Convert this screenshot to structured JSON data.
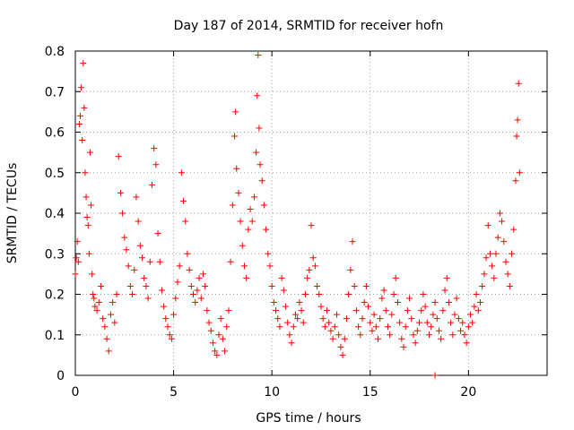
{
  "chart_data": {
    "type": "scatter",
    "title": "Day 187 of 2014, SRMTID for receiver hofn",
    "xlabel": "GPS time / hours",
    "ylabel": "SRMTID / TECUs",
    "xlim": [
      0,
      24
    ],
    "ylim": [
      0,
      0.8
    ],
    "xticks": [
      0,
      5,
      10,
      15,
      20
    ],
    "yticks": [
      0,
      0.1,
      0.2,
      0.3,
      0.4,
      0.5,
      0.6,
      0.7,
      0.8
    ],
    "xtick_labels": [
      "0",
      "5",
      "10",
      "15",
      "20"
    ],
    "ytick_labels": [
      "0",
      "0.1",
      "0.2",
      "0.3",
      "0.4",
      "0.5",
      "0.6",
      "0.7",
      "0.8"
    ],
    "grid": true,
    "marker": "plus",
    "color": "#ff0000",
    "series": [
      {
        "name": "SRMTID",
        "points": [
          [
            0.0,
            0.25
          ],
          [
            0.05,
            0.29
          ],
          [
            0.1,
            0.33
          ],
          [
            0.15,
            0.28
          ],
          [
            0.2,
            0.62
          ],
          [
            0.25,
            0.64
          ],
          [
            0.3,
            0.71
          ],
          [
            0.35,
            0.58
          ],
          [
            0.4,
            0.77
          ],
          [
            0.45,
            0.66
          ],
          [
            0.5,
            0.5
          ],
          [
            0.55,
            0.44
          ],
          [
            0.6,
            0.39
          ],
          [
            0.65,
            0.37
          ],
          [
            0.7,
            0.3
          ],
          [
            0.75,
            0.55
          ],
          [
            0.8,
            0.42
          ],
          [
            0.85,
            0.25
          ],
          [
            0.9,
            0.2
          ],
          [
            0.95,
            0.19
          ],
          [
            1.0,
            0.17
          ],
          [
            1.1,
            0.16
          ],
          [
            1.2,
            0.18
          ],
          [
            1.3,
            0.22
          ],
          [
            1.4,
            0.14
          ],
          [
            1.5,
            0.12
          ],
          [
            1.6,
            0.09
          ],
          [
            1.7,
            0.06
          ],
          [
            1.8,
            0.15
          ],
          [
            1.9,
            0.18
          ],
          [
            2.0,
            0.13
          ],
          [
            2.1,
            0.2
          ],
          [
            2.2,
            0.54
          ],
          [
            2.3,
            0.45
          ],
          [
            2.4,
            0.4
          ],
          [
            2.5,
            0.34
          ],
          [
            2.6,
            0.31
          ],
          [
            2.7,
            0.27
          ],
          [
            2.8,
            0.22
          ],
          [
            2.9,
            0.2
          ],
          [
            3.0,
            0.26
          ],
          [
            3.1,
            0.44
          ],
          [
            3.2,
            0.38
          ],
          [
            3.3,
            0.32
          ],
          [
            3.4,
            0.29
          ],
          [
            3.5,
            0.24
          ],
          [
            3.6,
            0.22
          ],
          [
            3.7,
            0.19
          ],
          [
            3.8,
            0.28
          ],
          [
            3.9,
            0.47
          ],
          [
            4.0,
            0.56
          ],
          [
            4.1,
            0.52
          ],
          [
            4.2,
            0.35
          ],
          [
            4.3,
            0.28
          ],
          [
            4.4,
            0.21
          ],
          [
            4.5,
            0.17
          ],
          [
            4.6,
            0.14
          ],
          [
            4.7,
            0.12
          ],
          [
            4.8,
            0.1
          ],
          [
            4.9,
            0.09
          ],
          [
            5.0,
            0.15
          ],
          [
            5.1,
            0.19
          ],
          [
            5.2,
            0.23
          ],
          [
            5.3,
            0.27
          ],
          [
            5.4,
            0.5
          ],
          [
            5.5,
            0.43
          ],
          [
            5.6,
            0.38
          ],
          [
            5.7,
            0.3
          ],
          [
            5.8,
            0.26
          ],
          [
            5.9,
            0.22
          ],
          [
            6.0,
            0.2
          ],
          [
            6.1,
            0.18
          ],
          [
            6.2,
            0.21
          ],
          [
            6.3,
            0.24
          ],
          [
            6.4,
            0.19
          ],
          [
            6.5,
            0.25
          ],
          [
            6.6,
            0.22
          ],
          [
            6.7,
            0.16
          ],
          [
            6.8,
            0.13
          ],
          [
            6.9,
            0.11
          ],
          [
            7.0,
            0.08
          ],
          [
            7.1,
            0.06
          ],
          [
            7.2,
            0.05
          ],
          [
            7.3,
            0.1
          ],
          [
            7.4,
            0.14
          ],
          [
            7.5,
            0.09
          ],
          [
            7.6,
            0.06
          ],
          [
            7.7,
            0.12
          ],
          [
            7.8,
            0.16
          ],
          [
            7.9,
            0.28
          ],
          [
            8.0,
            0.42
          ],
          [
            8.1,
            0.59
          ],
          [
            8.15,
            0.65
          ],
          [
            8.2,
            0.51
          ],
          [
            8.3,
            0.45
          ],
          [
            8.4,
            0.38
          ],
          [
            8.5,
            0.32
          ],
          [
            8.6,
            0.27
          ],
          [
            8.7,
            0.24
          ],
          [
            8.8,
            0.36
          ],
          [
            8.9,
            0.41
          ],
          [
            9.0,
            0.38
          ],
          [
            9.1,
            0.44
          ],
          [
            9.2,
            0.55
          ],
          [
            9.25,
            0.69
          ],
          [
            9.3,
            0.79
          ],
          [
            9.35,
            0.61
          ],
          [
            9.4,
            0.52
          ],
          [
            9.5,
            0.48
          ],
          [
            9.6,
            0.42
          ],
          [
            9.7,
            0.36
          ],
          [
            9.8,
            0.3
          ],
          [
            9.9,
            0.27
          ],
          [
            10.0,
            0.22
          ],
          [
            10.1,
            0.18
          ],
          [
            10.2,
            0.16
          ],
          [
            10.3,
            0.14
          ],
          [
            10.4,
            0.12
          ],
          [
            10.5,
            0.24
          ],
          [
            10.6,
            0.21
          ],
          [
            10.7,
            0.17
          ],
          [
            10.8,
            0.13
          ],
          [
            10.9,
            0.1
          ],
          [
            11.0,
            0.08
          ],
          [
            11.1,
            0.12
          ],
          [
            11.2,
            0.15
          ],
          [
            11.3,
            0.14
          ],
          [
            11.4,
            0.18
          ],
          [
            11.5,
            0.16
          ],
          [
            11.6,
            0.13
          ],
          [
            11.7,
            0.2
          ],
          [
            11.8,
            0.24
          ],
          [
            11.9,
            0.26
          ],
          [
            12.0,
            0.37
          ],
          [
            12.1,
            0.29
          ],
          [
            12.2,
            0.27
          ],
          [
            12.3,
            0.22
          ],
          [
            12.4,
            0.2
          ],
          [
            12.5,
            0.17
          ],
          [
            12.6,
            0.14
          ],
          [
            12.7,
            0.12
          ],
          [
            12.8,
            0.16
          ],
          [
            12.9,
            0.13
          ],
          [
            13.0,
            0.11
          ],
          [
            13.1,
            0.09
          ],
          [
            13.2,
            0.12
          ],
          [
            13.3,
            0.15
          ],
          [
            13.4,
            0.1
          ],
          [
            13.5,
            0.07
          ],
          [
            13.6,
            0.05
          ],
          [
            13.7,
            0.09
          ],
          [
            13.8,
            0.14
          ],
          [
            13.9,
            0.2
          ],
          [
            14.0,
            0.26
          ],
          [
            14.1,
            0.33
          ],
          [
            14.2,
            0.22
          ],
          [
            14.3,
            0.16
          ],
          [
            14.4,
            0.12
          ],
          [
            14.5,
            0.1
          ],
          [
            14.6,
            0.14
          ],
          [
            14.7,
            0.18
          ],
          [
            14.8,
            0.22
          ],
          [
            14.9,
            0.17
          ],
          [
            15.0,
            0.13
          ],
          [
            15.1,
            0.11
          ],
          [
            15.2,
            0.15
          ],
          [
            15.3,
            0.12
          ],
          [
            15.4,
            0.09
          ],
          [
            15.5,
            0.14
          ],
          [
            15.6,
            0.19
          ],
          [
            15.7,
            0.21
          ],
          [
            15.8,
            0.16
          ],
          [
            15.9,
            0.12
          ],
          [
            16.0,
            0.1
          ],
          [
            16.1,
            0.15
          ],
          [
            16.2,
            0.2
          ],
          [
            16.3,
            0.24
          ],
          [
            16.4,
            0.18
          ],
          [
            16.5,
            0.13
          ],
          [
            16.6,
            0.09
          ],
          [
            16.7,
            0.07
          ],
          [
            16.8,
            0.12
          ],
          [
            16.9,
            0.16
          ],
          [
            17.0,
            0.19
          ],
          [
            17.1,
            0.14
          ],
          [
            17.2,
            0.1
          ],
          [
            17.3,
            0.08
          ],
          [
            17.4,
            0.11
          ],
          [
            17.5,
            0.13
          ],
          [
            17.6,
            0.16
          ],
          [
            17.7,
            0.2
          ],
          [
            17.8,
            0.17
          ],
          [
            17.9,
            0.13
          ],
          [
            18.0,
            0.1
          ],
          [
            18.1,
            0.12
          ],
          [
            18.2,
            0.15
          ],
          [
            18.3,
            0.18
          ],
          [
            18.4,
            0.14
          ],
          [
            18.5,
            0.11
          ],
          [
            18.6,
            0.09
          ],
          [
            18.7,
            0.16
          ],
          [
            18.8,
            0.21
          ],
          [
            18.9,
            0.24
          ],
          [
            19.0,
            0.18
          ],
          [
            19.1,
            0.13
          ],
          [
            19.2,
            0.1
          ],
          [
            19.3,
            0.15
          ],
          [
            19.4,
            0.19
          ],
          [
            19.5,
            0.14
          ],
          [
            19.6,
            0.11
          ],
          [
            19.7,
            0.13
          ],
          [
            19.8,
            0.1
          ],
          [
            19.9,
            0.08
          ],
          [
            20.0,
            0.12
          ],
          [
            20.1,
            0.15
          ],
          [
            20.2,
            0.13
          ],
          [
            20.3,
            0.17
          ],
          [
            20.4,
            0.2
          ],
          [
            20.5,
            0.16
          ],
          [
            20.6,
            0.18
          ],
          [
            20.7,
            0.22
          ],
          [
            20.8,
            0.25
          ],
          [
            20.9,
            0.29
          ],
          [
            21.0,
            0.37
          ],
          [
            21.1,
            0.3
          ],
          [
            21.2,
            0.27
          ],
          [
            21.3,
            0.24
          ],
          [
            21.4,
            0.3
          ],
          [
            21.5,
            0.34
          ],
          [
            21.6,
            0.4
          ],
          [
            21.7,
            0.38
          ],
          [
            21.8,
            0.33
          ],
          [
            21.9,
            0.28
          ],
          [
            22.0,
            0.25
          ],
          [
            22.1,
            0.22
          ],
          [
            22.2,
            0.3
          ],
          [
            22.3,
            0.36
          ],
          [
            22.4,
            0.48
          ],
          [
            22.45,
            0.59
          ],
          [
            22.5,
            0.63
          ],
          [
            22.55,
            0.72
          ],
          [
            22.6,
            0.5
          ],
          [
            18.3,
            0.0
          ]
        ]
      }
    ]
  }
}
